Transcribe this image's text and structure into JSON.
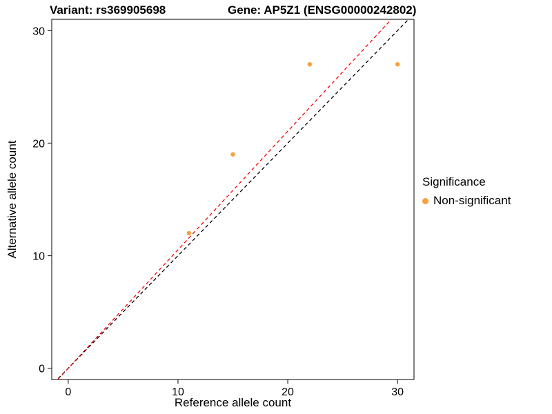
{
  "chart_data": {
    "type": "scatter",
    "title_left": "Variant: rs369905698",
    "title_right": "Gene: AP5Z1 (ENSG00000242802)",
    "xlabel": "Reference allele count",
    "ylabel": "Alternative allele count",
    "xlim": [
      -1.5,
      31.5
    ],
    "ylim": [
      -1,
      31
    ],
    "xticks": [
      0,
      10,
      20,
      30
    ],
    "yticks": [
      0,
      10,
      20,
      30
    ],
    "grid": false,
    "points": [
      {
        "x": 11,
        "y": 12
      },
      {
        "x": 15,
        "y": 19
      },
      {
        "x": 22,
        "y": 27
      },
      {
        "x": 30,
        "y": 27
      }
    ],
    "point_color": "#F9A03C",
    "panel_border_color": "#2b2b2b",
    "lines": [
      {
        "name": "identity",
        "slope": 1.0,
        "intercept": 0,
        "color": "#000000",
        "dash": "5 4"
      },
      {
        "name": "fit",
        "slope": 1.053,
        "intercept": 0,
        "color": "#FF0000",
        "dash": "5 4"
      }
    ],
    "legend": {
      "position": "right",
      "title": "Significance",
      "entries": [
        {
          "label": "Non-significant",
          "color": "#F9A03C"
        }
      ]
    }
  }
}
